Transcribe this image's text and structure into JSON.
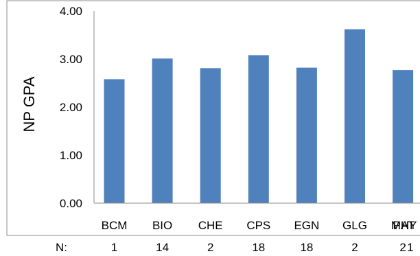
{
  "chart_data": {
    "type": "bar",
    "title": "",
    "xlabel": "",
    "ylabel": "NP GPA",
    "categories": [
      "BCM",
      "BIO",
      "CHE",
      "CPS",
      "EGN",
      "GLG",
      "MAT",
      "PHY"
    ],
    "values": [
      2.58,
      3.01,
      2.81,
      3.08,
      2.82,
      3.62,
      2.77,
      null
    ],
    "ylim": [
      0,
      4
    ],
    "yticks": [
      "0.00",
      "1.00",
      "2.00",
      "3.00",
      "4.00"
    ],
    "grid": false,
    "bar_color": "#4f81bd",
    "n_row": {
      "label": "N:",
      "values": [
        "1",
        "14",
        "2",
        "18",
        "18",
        "2",
        "2",
        "1"
      ]
    }
  }
}
